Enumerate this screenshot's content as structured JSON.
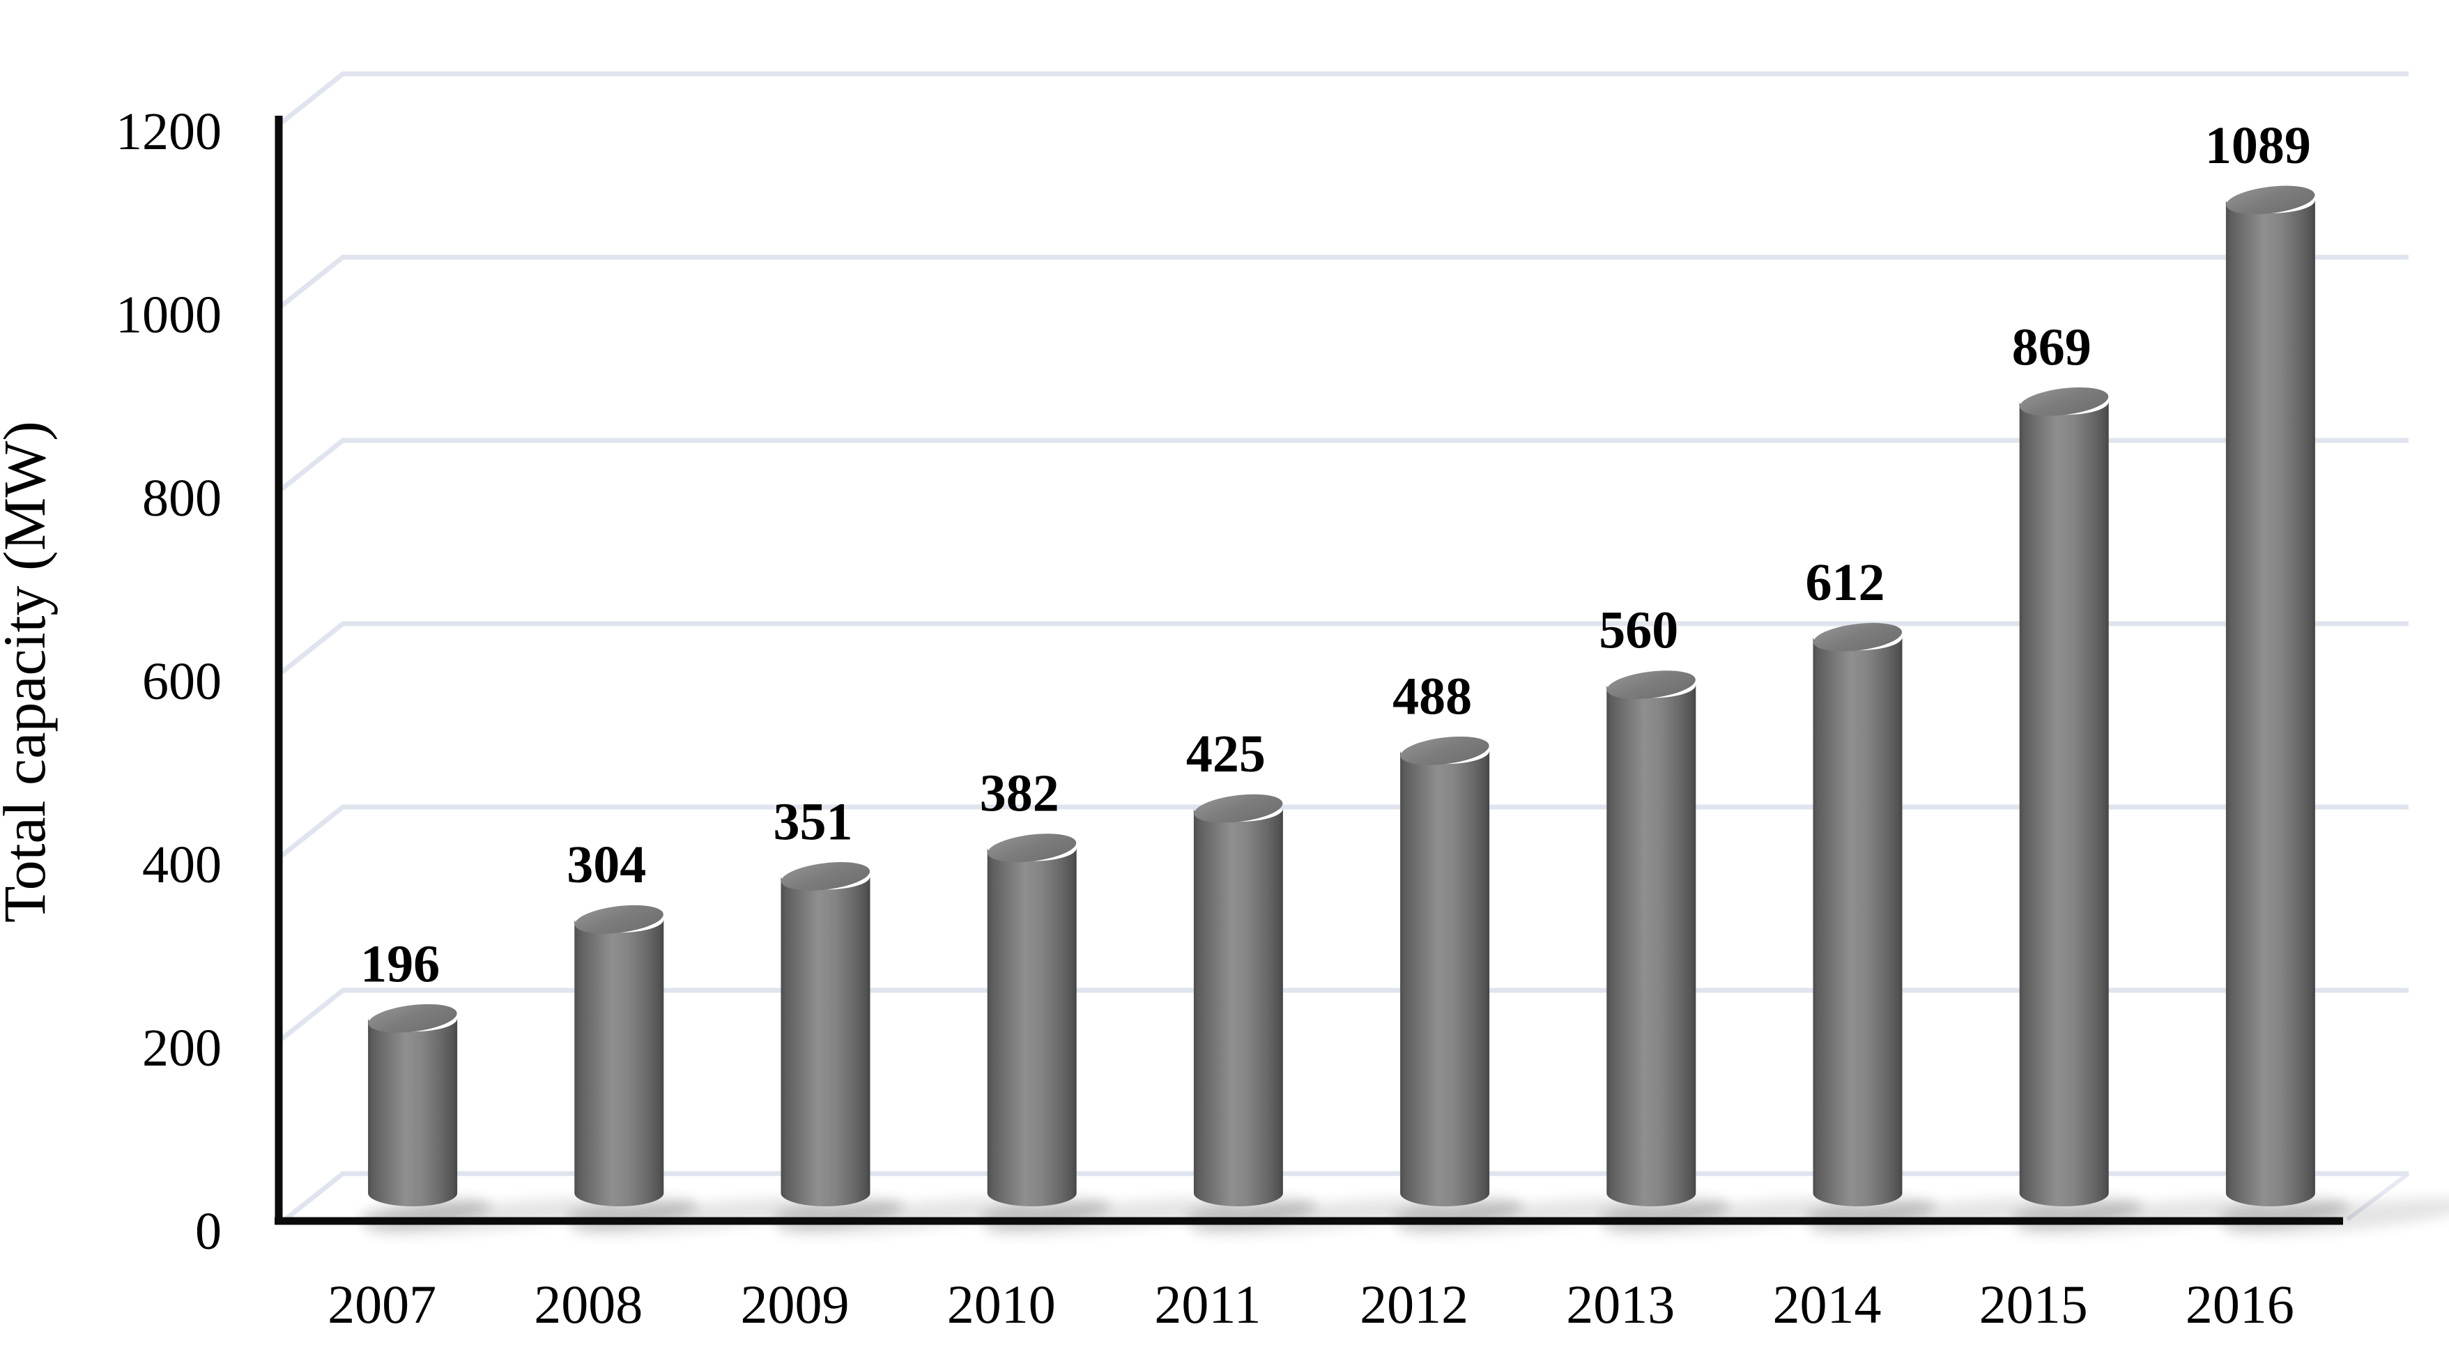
{
  "chart_data": {
    "type": "bar",
    "subtype": "3d-cylinder-column",
    "title": "",
    "xlabel": "",
    "ylabel": "Total capacity (MW)",
    "categories": [
      "2007",
      "2008",
      "2009",
      "2010",
      "2011",
      "2012",
      "2013",
      "2014",
      "2015",
      "2016"
    ],
    "values": [
      196,
      304,
      351,
      382,
      425,
      488,
      560,
      612,
      869,
      1089
    ],
    "series": [
      {
        "name": "Total capacity (MW)",
        "values": [
          196,
          304,
          351,
          382,
          425,
          488,
          560,
          612,
          869,
          1089
        ]
      }
    ],
    "data_labels": [
      "196",
      "304",
      "351",
      "382",
      "425",
      "488",
      "560",
      "612",
      "869",
      "1089"
    ],
    "ylim": [
      0,
      1200
    ],
    "yticks": [
      0,
      200,
      400,
      600,
      800,
      1000,
      1200
    ],
    "ytick_labels": [
      "0",
      "200",
      "400",
      "600",
      "800",
      "1000",
      "1200"
    ],
    "grid": true,
    "legend_position": "none",
    "colors": {
      "background": "#ffffff",
      "bar_highlight": "#8f8f8f",
      "bar_shade": "#4e4e4e",
      "bar_top_face": "#7d7d7d",
      "gridline": "#dfe4ee",
      "axis_line": "#0b0b0b",
      "text": "#000000"
    }
  }
}
